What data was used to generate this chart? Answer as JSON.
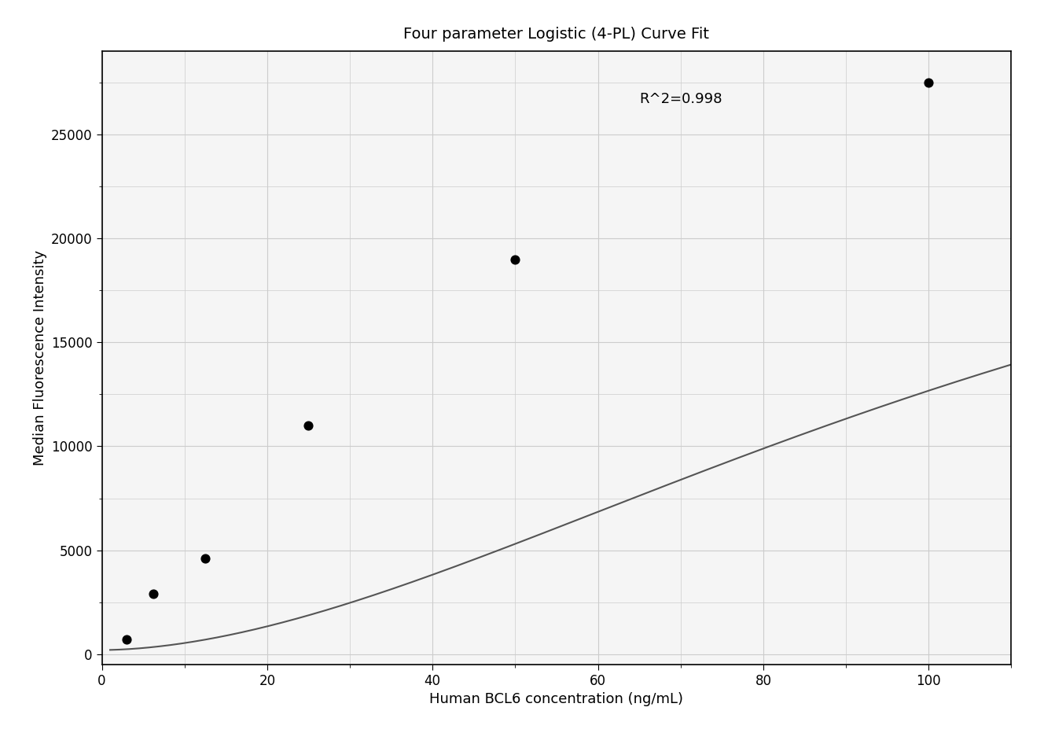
{
  "title": "Four parameter Logistic (4-PL) Curve Fit",
  "xlabel": "Human BCL6 concentration (ng/mL)",
  "ylabel": "Median Fluorescence Intensity",
  "data_x": [
    3,
    6.25,
    12.5,
    25,
    50,
    100
  ],
  "data_y": [
    700,
    2900,
    4600,
    11000,
    19000,
    27500
  ],
  "xlim": [
    1,
    110
  ],
  "ylim": [
    -500,
    29000
  ],
  "r2_text": "R^2=0.998",
  "r2_x": 65,
  "r2_y": 26500,
  "curve_color": "#555555",
  "dot_color": "#000000",
  "grid_color": "#cccccc",
  "background_color": "#f5f5f5",
  "title_fontsize": 14,
  "label_fontsize": 13,
  "tick_fontsize": 12,
  "4pl_A": 200,
  "4pl_B": 1.8,
  "4pl_C": 120,
  "4pl_D": 30000
}
